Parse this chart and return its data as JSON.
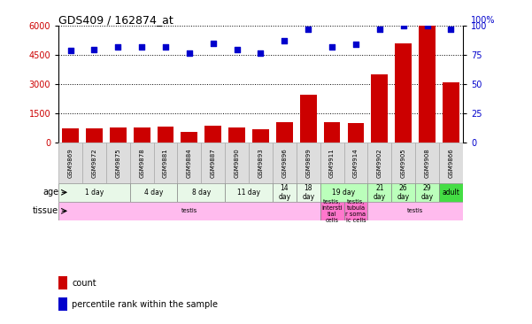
{
  "title": "GDS409 / 162874_at",
  "samples": [
    "GSM9869",
    "GSM9872",
    "GSM9875",
    "GSM9878",
    "GSM9881",
    "GSM9884",
    "GSM9887",
    "GSM9890",
    "GSM9893",
    "GSM9896",
    "GSM9899",
    "GSM9911",
    "GSM9914",
    "GSM9902",
    "GSM9905",
    "GSM9908",
    "GSM9866"
  ],
  "counts": [
    700,
    730,
    760,
    780,
    790,
    550,
    850,
    760,
    680,
    1050,
    2450,
    1050,
    1000,
    3500,
    5100,
    6000,
    3100
  ],
  "percentiles": [
    79,
    80,
    82,
    82,
    82,
    77,
    85,
    80,
    77,
    87,
    97,
    82,
    84,
    97,
    100,
    100,
    97
  ],
  "ylim_left": [
    0,
    6000
  ],
  "ylim_right": [
    0,
    100
  ],
  "yticks_left": [
    0,
    1500,
    3000,
    4500,
    6000
  ],
  "yticks_right": [
    0,
    25,
    50,
    75,
    100
  ],
  "bar_color": "#cc0000",
  "dot_color": "#0000cc",
  "sample_box_color": "#dddddd",
  "age_groups": [
    {
      "label": "1 day",
      "start": 0,
      "end": 3,
      "color": "#e8f8e8"
    },
    {
      "label": "4 day",
      "start": 3,
      "end": 5,
      "color": "#e8f8e8"
    },
    {
      "label": "8 day",
      "start": 5,
      "end": 7,
      "color": "#e8f8e8"
    },
    {
      "label": "11 day",
      "start": 7,
      "end": 9,
      "color": "#e8f8e8"
    },
    {
      "label": "14\nday",
      "start": 9,
      "end": 10,
      "color": "#e8f8e8"
    },
    {
      "label": "18\nday",
      "start": 10,
      "end": 11,
      "color": "#e8f8e8"
    },
    {
      "label": "19 day",
      "start": 11,
      "end": 13,
      "color": "#bbffbb"
    },
    {
      "label": "21\nday",
      "start": 13,
      "end": 14,
      "color": "#bbffbb"
    },
    {
      "label": "26\nday",
      "start": 14,
      "end": 15,
      "color": "#bbffbb"
    },
    {
      "label": "29\nday",
      "start": 15,
      "end": 16,
      "color": "#bbffbb"
    },
    {
      "label": "adult",
      "start": 16,
      "end": 17,
      "color": "#44dd44"
    }
  ],
  "tissue_groups": [
    {
      "label": "testis",
      "start": 0,
      "end": 11,
      "color": "#ffbbee"
    },
    {
      "label": "testis,\nintersti\ntial\ncells",
      "start": 11,
      "end": 12,
      "color": "#ff77cc"
    },
    {
      "label": "testis,\ntubula\nr soma\nic cells",
      "start": 12,
      "end": 13,
      "color": "#ff77cc"
    },
    {
      "label": "testis",
      "start": 13,
      "end": 17,
      "color": "#ffbbee"
    }
  ],
  "legend_items": [
    {
      "label": "count",
      "color": "#cc0000"
    },
    {
      "label": "percentile rank within the sample",
      "color": "#0000cc"
    }
  ]
}
